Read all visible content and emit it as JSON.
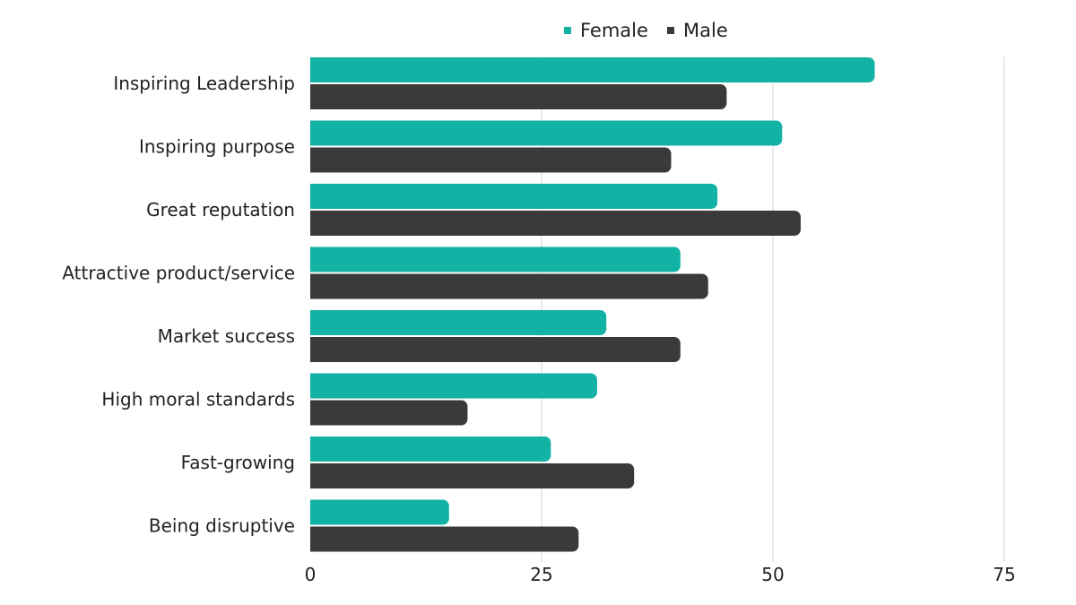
{
  "chart_data": {
    "type": "bar",
    "orientation": "horizontal",
    "title": "",
    "xlabel": "",
    "ylabel": "",
    "categories": [
      "Inspiring Leadership",
      "Inspiring purpose",
      "Great reputation",
      "Attractive product/service",
      "Market success",
      "High moral standards",
      "Fast-growing",
      "Being disruptive"
    ],
    "series": [
      {
        "name": "Female",
        "color": "#12b2a5",
        "values": [
          61,
          51,
          44,
          40,
          32,
          31,
          26,
          15
        ]
      },
      {
        "name": "Male",
        "color": "#3a3a3b",
        "values": [
          45,
          39,
          53,
          43,
          40,
          17,
          35,
          29
        ]
      }
    ],
    "xlim": [
      0,
      75
    ],
    "ticks": [
      "0",
      "25",
      "50",
      "75"
    ],
    "tick_values": [
      0,
      25,
      50,
      75
    ],
    "grid": true,
    "legend_position": "top-center"
  }
}
